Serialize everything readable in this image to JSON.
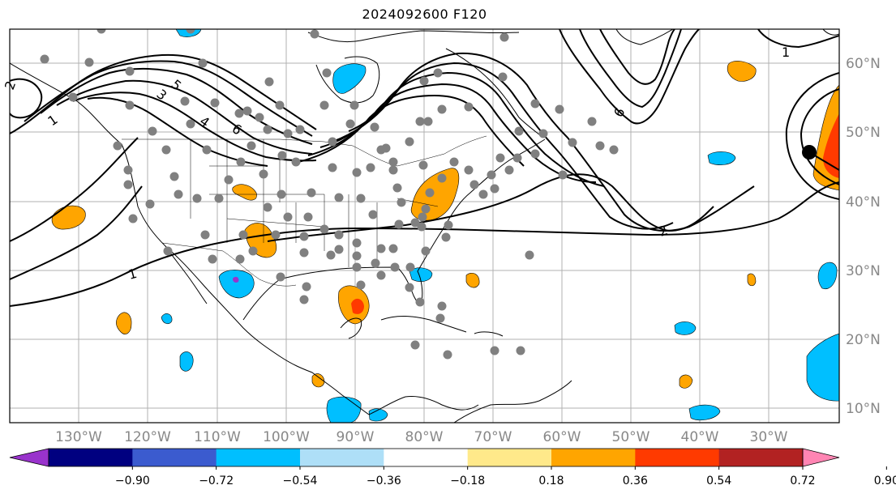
{
  "title": "2024092600 F120",
  "map": {
    "lon_labels": [
      "130°W",
      "120°W",
      "110°W",
      "100°W",
      "90°W",
      "80°W",
      "70°W",
      "60°W",
      "50°W",
      "40°W",
      "30°W"
    ],
    "lat_labels": [
      "60°N",
      "50°N",
      "40°N",
      "30°N",
      "20°N",
      "10°N"
    ],
    "contour_labels": [
      "1",
      "2",
      "3",
      "4",
      "5",
      "6",
      "1",
      "1",
      "2",
      "6"
    ],
    "colors": {
      "station": "#808080",
      "contour": "#000000",
      "coast": "#000000",
      "grid": "#b0b0b0"
    }
  },
  "colorbar": {
    "ticks": [
      "−0.90",
      "−0.72",
      "−0.54",
      "−0.36",
      "−0.18",
      "0.18",
      "0.36",
      "0.54",
      "0.72",
      "0.90"
    ],
    "colors": [
      "#9933cc",
      "#000080",
      "#3b5bcf",
      "#00bfff",
      "#aedff7",
      "#ffffff",
      "#ffe98a",
      "#ffa500",
      "#ff3a00",
      "#b22222",
      "#ff85b3"
    ]
  }
}
